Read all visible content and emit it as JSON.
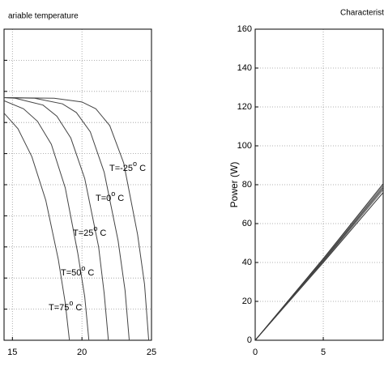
{
  "chart_data": [
    {
      "type": "line",
      "title": "ariable temperature",
      "xlim": [
        14.4,
        25
      ],
      "ylim": [
        0,
        5
      ],
      "xticks": [
        15,
        20,
        25
      ],
      "yticks": [
        0,
        0.5,
        1,
        1.5,
        2,
        2.5,
        3,
        3.5,
        4,
        4.5,
        5
      ],
      "show_ytick_labels": false,
      "grid": true,
      "series": [
        {
          "name": "T=-25",
          "color": "#444444",
          "x": [
            14.4,
            18,
            20,
            21,
            22,
            23,
            24,
            24.5,
            24.8
          ],
          "values": [
            3.9,
            3.89,
            3.83,
            3.72,
            3.45,
            2.85,
            1.7,
            0.9,
            0
          ]
        },
        {
          "name": "T=0",
          "color": "#444444",
          "x": [
            14.4,
            16.6,
            18.6,
            19.6,
            20.6,
            21.6,
            22.6,
            23.1,
            23.4
          ],
          "values": [
            3.9,
            3.89,
            3.8,
            3.66,
            3.35,
            2.7,
            1.6,
            0.8,
            0
          ]
        },
        {
          "name": "T=25",
          "color": "#444444",
          "x": [
            14.4,
            15.2,
            17.2,
            18.2,
            19.2,
            20.2,
            21.2,
            21.6,
            21.9
          ],
          "values": [
            3.9,
            3.89,
            3.78,
            3.6,
            3.25,
            2.6,
            1.5,
            0.75,
            0
          ]
        },
        {
          "name": "T=50",
          "color": "#444444",
          "x": [
            14.4,
            15.8,
            16.8,
            17.8,
            18.8,
            19.7,
            20.2,
            20.5
          ],
          "values": [
            3.85,
            3.72,
            3.52,
            3.15,
            2.45,
            1.4,
            0.7,
            0
          ]
        },
        {
          "name": "T=75",
          "color": "#444444",
          "x": [
            14.4,
            15.4,
            16.4,
            17.4,
            18.3,
            18.8,
            19.1
          ],
          "values": [
            3.65,
            3.4,
            2.95,
            2.25,
            1.3,
            0.6,
            0
          ]
        }
      ],
      "annotations": [
        {
          "text": "T=-25",
          "sup": "o",
          "unit": "C"
        },
        {
          "text": "T=0",
          "sup": "o",
          "unit": "C"
        },
        {
          "text": "T=25",
          "sup": "o",
          "unit": "C"
        },
        {
          "text": "T=50",
          "sup": "o",
          "unit": "C"
        },
        {
          "text": "T=75",
          "sup": "o",
          "unit": "C"
        }
      ]
    },
    {
      "type": "line",
      "title": "Characteristi",
      "ylabel": "Power (W)",
      "xlim": [
        0,
        9.4
      ],
      "ylim": [
        0,
        160
      ],
      "xticks": [
        0,
        5
      ],
      "yticks": [
        0,
        20,
        40,
        60,
        80,
        100,
        120,
        140,
        160
      ],
      "show_ytick_labels": true,
      "grid": true,
      "series": [
        {
          "color": "#333333",
          "x": [
            0,
            5,
            9.4
          ],
          "values": [
            0,
            40,
            76
          ]
        },
        {
          "color": "#555555",
          "x": [
            0,
            5,
            9.4
          ],
          "values": [
            0,
            40.5,
            77.5
          ]
        },
        {
          "color": "#333333",
          "x": [
            0,
            5,
            9.4
          ],
          "values": [
            0,
            41,
            78.5
          ]
        },
        {
          "color": "#555555",
          "x": [
            0,
            5,
            9.4
          ],
          "values": [
            0,
            41.5,
            79.5
          ]
        },
        {
          "color": "#333333",
          "x": [
            0,
            5,
            9.4
          ],
          "values": [
            0,
            42,
            80.5
          ]
        }
      ]
    }
  ]
}
